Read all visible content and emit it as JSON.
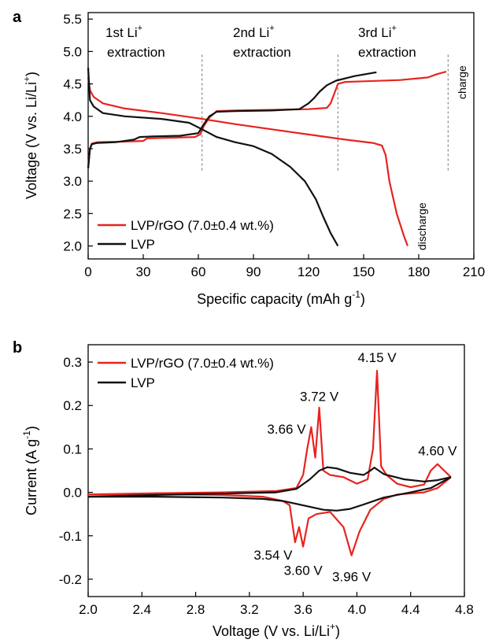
{
  "colors": {
    "red": "#e8231f",
    "black": "#111111",
    "guide": "#888888"
  },
  "chart_data": [
    {
      "type": "line",
      "panel_label": "a",
      "xlabel": "Specific capacity (mAh g",
      "xlabel_sup": "-1",
      "xlabel_close": ")",
      "ylabel": "Voltage (V vs. Li/Li",
      "ylabel_sup": "+",
      "ylabel_close": ")",
      "xlim": [
        0,
        210
      ],
      "ylim": [
        1.8,
        5.6
      ],
      "xticks": [
        0,
        30,
        60,
        90,
        120,
        150,
        180,
        210
      ],
      "yticks": [
        2.0,
        2.5,
        3.0,
        3.5,
        4.0,
        4.5,
        5.0,
        5.5
      ],
      "ytick_labels": [
        "2.0",
        "2.5",
        "3.0",
        "3.5",
        "4.0",
        "4.5",
        "5.0",
        "5.5"
      ],
      "legend": [
        "LVP/rGO (7.0±0.4 wt.%)",
        "LVP"
      ],
      "legend_position": "lower-left",
      "guides_x": [
        62,
        136,
        196
      ],
      "annotations": [
        {
          "line1": "1st Li",
          "sup": "+",
          "line2": "extraction"
        },
        {
          "line1": "2nd Li",
          "sup": "+",
          "line2": "extraction"
        },
        {
          "line1": "3rd Li",
          "sup": "+",
          "line2": "extraction"
        },
        {
          "text": "charge"
        },
        {
          "text": "discharge"
        }
      ],
      "series": [
        {
          "name": "LVP/rGO (7.0±0.4 wt.%)",
          "color": "red",
          "branch": "charge",
          "x": [
            0,
            1,
            2,
            5,
            20,
            30,
            32,
            45,
            58,
            61,
            63,
            66,
            70,
            80,
            100,
            120,
            130,
            132,
            134,
            136,
            140,
            150,
            170,
            185,
            190,
            195
          ],
          "y": [
            3.2,
            3.5,
            3.58,
            3.6,
            3.61,
            3.62,
            3.66,
            3.67,
            3.68,
            3.72,
            3.85,
            3.98,
            4.08,
            4.09,
            4.1,
            4.11,
            4.13,
            4.2,
            4.35,
            4.5,
            4.53,
            4.54,
            4.56,
            4.6,
            4.65,
            4.69
          ]
        },
        {
          "name": "LVP/rGO (7.0±0.4 wt.%)",
          "color": "red",
          "branch": "discharge",
          "x": [
            0,
            1,
            3,
            8,
            20,
            40,
            60,
            80,
            100,
            120,
            140,
            155,
            160,
            162,
            164,
            168,
            172,
            174
          ],
          "y": [
            4.6,
            4.4,
            4.3,
            4.2,
            4.12,
            4.05,
            3.97,
            3.88,
            3.8,
            3.72,
            3.64,
            3.59,
            3.55,
            3.4,
            3.0,
            2.5,
            2.15,
            2.0
          ]
        },
        {
          "name": "LVP",
          "color": "black",
          "branch": "charge",
          "x": [
            0,
            1,
            2,
            5,
            15,
            25,
            28,
            35,
            50,
            60,
            63,
            66,
            70,
            80,
            100,
            115,
            120,
            123,
            126,
            130,
            135,
            145,
            157
          ],
          "y": [
            3.2,
            3.5,
            3.57,
            3.59,
            3.6,
            3.64,
            3.68,
            3.69,
            3.7,
            3.74,
            3.88,
            4.0,
            4.07,
            4.08,
            4.09,
            4.11,
            4.2,
            4.28,
            4.38,
            4.48,
            4.55,
            4.62,
            4.68
          ]
        },
        {
          "name": "LVP",
          "color": "black",
          "branch": "discharge",
          "x": [
            0,
            1,
            3,
            8,
            20,
            40,
            55,
            62,
            70,
            80,
            90,
            100,
            110,
            118,
            124,
            128,
            132,
            136
          ],
          "y": [
            4.75,
            4.25,
            4.15,
            4.05,
            4.0,
            3.96,
            3.9,
            3.8,
            3.68,
            3.6,
            3.54,
            3.42,
            3.22,
            3.0,
            2.72,
            2.45,
            2.2,
            2.0
          ]
        }
      ]
    },
    {
      "type": "line",
      "panel_label": "b",
      "xlabel": "Voltage (V vs. Li/Li",
      "xlabel_sup": "+",
      "xlabel_close": ")",
      "ylabel": "Current (A g",
      "ylabel_sup": "-1",
      "ylabel_close": ")",
      "xlim": [
        2.0,
        4.8
      ],
      "ylim": [
        -0.24,
        0.34
      ],
      "xticks": [
        2.0,
        2.4,
        2.8,
        3.2,
        3.6,
        4.0,
        4.4,
        4.8
      ],
      "xtick_labels": [
        "2.0",
        "2.4",
        "2.8",
        "3.2",
        "3.6",
        "4.0",
        "4.4",
        "4.8"
      ],
      "yticks": [
        -0.2,
        -0.1,
        0.0,
        0.1,
        0.2,
        0.3
      ],
      "ytick_labels": [
        "-0.2",
        "-0.1",
        "0.0",
        "0.1",
        "0.2",
        "0.3"
      ],
      "legend": [
        "LVP/rGO (7.0±0.4 wt.%)",
        "LVP"
      ],
      "legend_position": "top-left",
      "peak_labels": [
        {
          "text": "4.15 V",
          "x": 4.15,
          "y": 0.3,
          "anchor": "middle"
        },
        {
          "text": "3.72 V",
          "x": 3.72,
          "y": 0.21,
          "anchor": "middle"
        },
        {
          "text": "3.66 V",
          "x": 3.62,
          "y": 0.135,
          "anchor": "end"
        },
        {
          "text": "4.60 V",
          "x": 4.6,
          "y": 0.085,
          "anchor": "middle"
        },
        {
          "text": "3.54 V",
          "x": 3.52,
          "y": -0.155,
          "anchor": "end"
        },
        {
          "text": "3.60 V",
          "x": 3.6,
          "y": -0.19,
          "anchor": "middle"
        },
        {
          "text": "3.96 V",
          "x": 3.96,
          "y": -0.205,
          "anchor": "middle"
        }
      ],
      "series": [
        {
          "name": "LVP/rGO (7.0±0.4 wt.%)",
          "color": "red",
          "branch": "anodic",
          "x": [
            2.0,
            2.5,
            3.0,
            3.4,
            3.55,
            3.6,
            3.63,
            3.66,
            3.69,
            3.72,
            3.75,
            3.8,
            3.9,
            4.0,
            4.08,
            4.12,
            4.15,
            4.18,
            4.22,
            4.3,
            4.4,
            4.5,
            4.55,
            4.6,
            4.65,
            4.7
          ],
          "y": [
            -0.005,
            -0.002,
            0.0,
            0.003,
            0.01,
            0.04,
            0.1,
            0.15,
            0.08,
            0.195,
            0.05,
            0.04,
            0.035,
            0.02,
            0.03,
            0.1,
            0.28,
            0.06,
            0.04,
            0.02,
            0.012,
            0.018,
            0.05,
            0.065,
            0.05,
            0.035
          ]
        },
        {
          "name": "LVP/rGO (7.0±0.4 wt.%)",
          "color": "red",
          "branch": "cathodic",
          "x": [
            4.7,
            4.6,
            4.5,
            4.3,
            4.2,
            4.1,
            4.02,
            3.96,
            3.9,
            3.8,
            3.7,
            3.64,
            3.6,
            3.57,
            3.54,
            3.5,
            3.45,
            3.3,
            3.0,
            2.5,
            2.0
          ],
          "y": [
            0.035,
            0.01,
            0.0,
            -0.005,
            -0.015,
            -0.04,
            -0.09,
            -0.145,
            -0.08,
            -0.045,
            -0.05,
            -0.06,
            -0.125,
            -0.08,
            -0.115,
            -0.03,
            -0.02,
            -0.01,
            -0.006,
            -0.004,
            -0.005
          ]
        },
        {
          "name": "LVP",
          "color": "black",
          "branch": "anodic",
          "x": [
            2.0,
            2.5,
            3.0,
            3.4,
            3.55,
            3.65,
            3.72,
            3.78,
            3.85,
            3.95,
            4.05,
            4.1,
            4.13,
            4.2,
            4.35,
            4.5,
            4.6,
            4.7
          ],
          "y": [
            -0.01,
            -0.006,
            -0.003,
            0.0,
            0.008,
            0.03,
            0.05,
            0.058,
            0.055,
            0.045,
            0.04,
            0.05,
            0.057,
            0.042,
            0.03,
            0.025,
            0.028,
            0.035
          ]
        },
        {
          "name": "LVP",
          "color": "black",
          "branch": "cathodic",
          "x": [
            4.7,
            4.55,
            4.4,
            4.2,
            4.05,
            3.95,
            3.85,
            3.75,
            3.6,
            3.45,
            3.3,
            3.0,
            2.5,
            2.0
          ],
          "y": [
            0.035,
            0.01,
            0.0,
            -0.012,
            -0.028,
            -0.038,
            -0.042,
            -0.04,
            -0.03,
            -0.02,
            -0.015,
            -0.012,
            -0.01,
            -0.01
          ]
        }
      ]
    }
  ]
}
